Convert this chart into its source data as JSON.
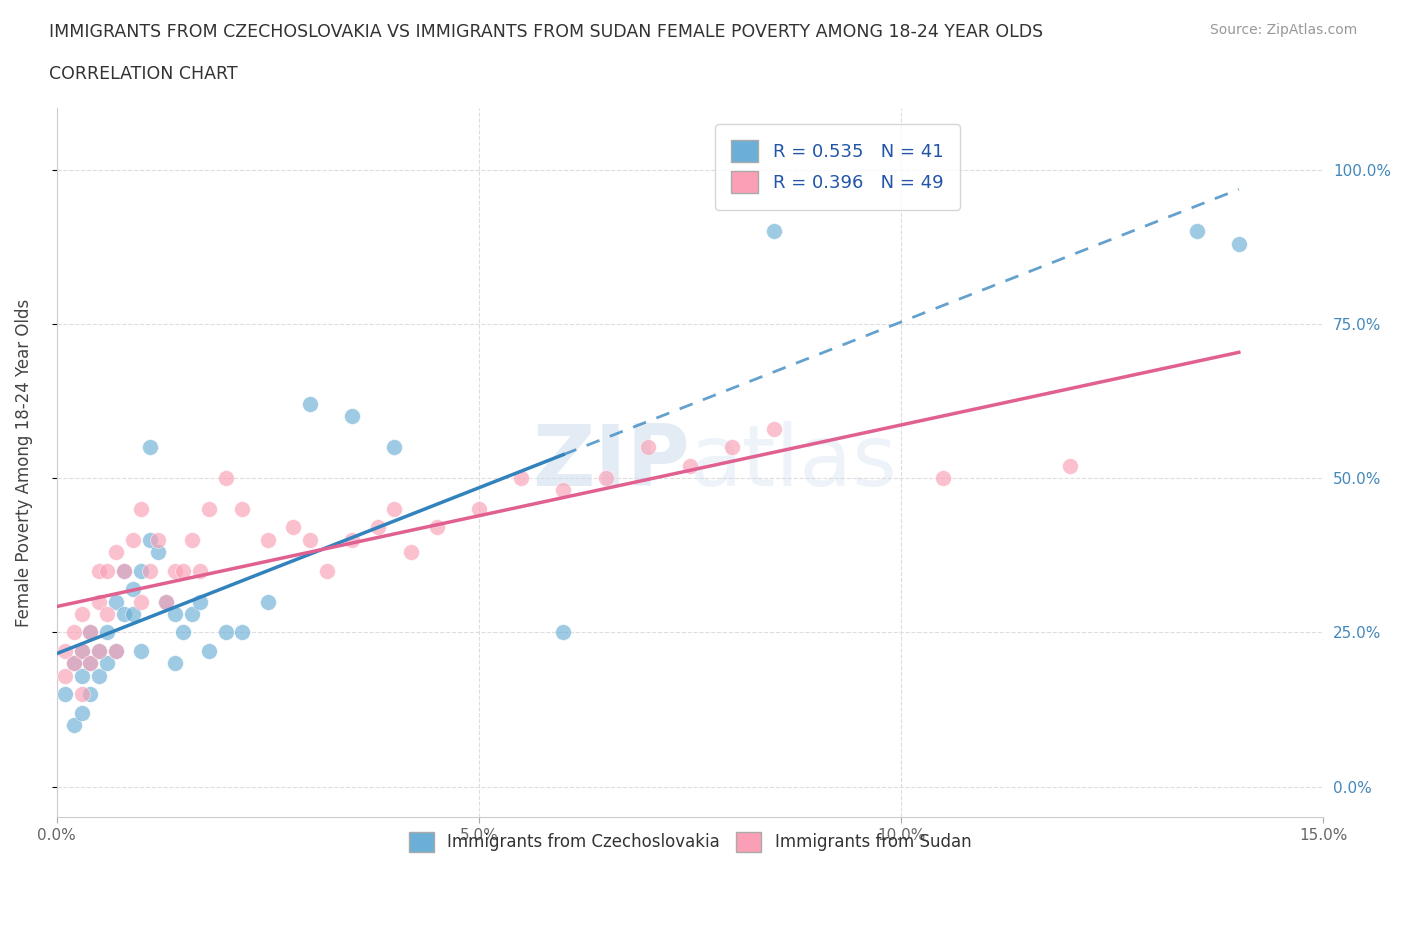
{
  "title_line1": "IMMIGRANTS FROM CZECHOSLOVAKIA VS IMMIGRANTS FROM SUDAN FEMALE POVERTY AMONG 18-24 YEAR OLDS",
  "title_line2": "CORRELATION CHART",
  "source": "Source: ZipAtlas.com",
  "ylabel": "Female Poverty Among 18-24 Year Olds",
  "xlim": [
    0.0,
    0.15
  ],
  "ylim": [
    -0.05,
    1.1
  ],
  "ytick_vals": [
    0.0,
    0.25,
    0.5,
    0.75,
    1.0
  ],
  "ytick_labels_right": [
    "0.0%",
    "25.0%",
    "50.0%",
    "75.0%",
    "100.0%"
  ],
  "xticks": [
    0.0,
    0.05,
    0.1,
    0.15
  ],
  "xtick_labels": [
    "0.0%",
    "5.0%",
    "10.0%",
    "15.0%"
  ],
  "legend_labels": [
    "Immigrants from Czechoslovakia",
    "Immigrants from Sudan"
  ],
  "R_czech": 0.535,
  "N_czech": 41,
  "R_sudan": 0.396,
  "N_sudan": 49,
  "color_czech": "#6baed6",
  "color_sudan": "#fa9fb5",
  "color_czech_line": "#3182bd",
  "color_sudan_line": "#e06090",
  "watermark_zip": "ZIP",
  "watermark_atlas": "atlas",
  "czech_x": [
    0.001,
    0.002,
    0.002,
    0.003,
    0.003,
    0.003,
    0.004,
    0.004,
    0.004,
    0.005,
    0.005,
    0.006,
    0.006,
    0.007,
    0.007,
    0.008,
    0.008,
    0.009,
    0.009,
    0.01,
    0.01,
    0.011,
    0.011,
    0.012,
    0.013,
    0.014,
    0.014,
    0.015,
    0.016,
    0.017,
    0.018,
    0.02,
    0.022,
    0.025,
    0.03,
    0.035,
    0.04,
    0.06,
    0.085,
    0.135,
    0.14
  ],
  "czech_y": [
    0.15,
    0.1,
    0.2,
    0.18,
    0.22,
    0.12,
    0.2,
    0.25,
    0.15,
    0.18,
    0.22,
    0.25,
    0.2,
    0.3,
    0.22,
    0.28,
    0.35,
    0.32,
    0.28,
    0.22,
    0.35,
    0.4,
    0.55,
    0.38,
    0.3,
    0.2,
    0.28,
    0.25,
    0.28,
    0.3,
    0.22,
    0.25,
    0.25,
    0.3,
    0.62,
    0.6,
    0.55,
    0.25,
    0.9,
    0.9,
    0.88
  ],
  "sudan_x": [
    0.001,
    0.001,
    0.002,
    0.002,
    0.003,
    0.003,
    0.003,
    0.004,
    0.004,
    0.005,
    0.005,
    0.005,
    0.006,
    0.006,
    0.007,
    0.007,
    0.008,
    0.009,
    0.01,
    0.01,
    0.011,
    0.012,
    0.013,
    0.014,
    0.015,
    0.016,
    0.017,
    0.018,
    0.02,
    0.022,
    0.025,
    0.028,
    0.03,
    0.032,
    0.035,
    0.038,
    0.04,
    0.042,
    0.045,
    0.05,
    0.055,
    0.06,
    0.065,
    0.07,
    0.075,
    0.08,
    0.085,
    0.105,
    0.12
  ],
  "sudan_y": [
    0.18,
    0.22,
    0.2,
    0.25,
    0.15,
    0.22,
    0.28,
    0.2,
    0.25,
    0.3,
    0.22,
    0.35,
    0.28,
    0.35,
    0.22,
    0.38,
    0.35,
    0.4,
    0.3,
    0.45,
    0.35,
    0.4,
    0.3,
    0.35,
    0.35,
    0.4,
    0.35,
    0.45,
    0.5,
    0.45,
    0.4,
    0.42,
    0.4,
    0.35,
    0.4,
    0.42,
    0.45,
    0.38,
    0.42,
    0.45,
    0.5,
    0.48,
    0.5,
    0.55,
    0.52,
    0.55,
    0.58,
    0.5,
    0.52
  ]
}
